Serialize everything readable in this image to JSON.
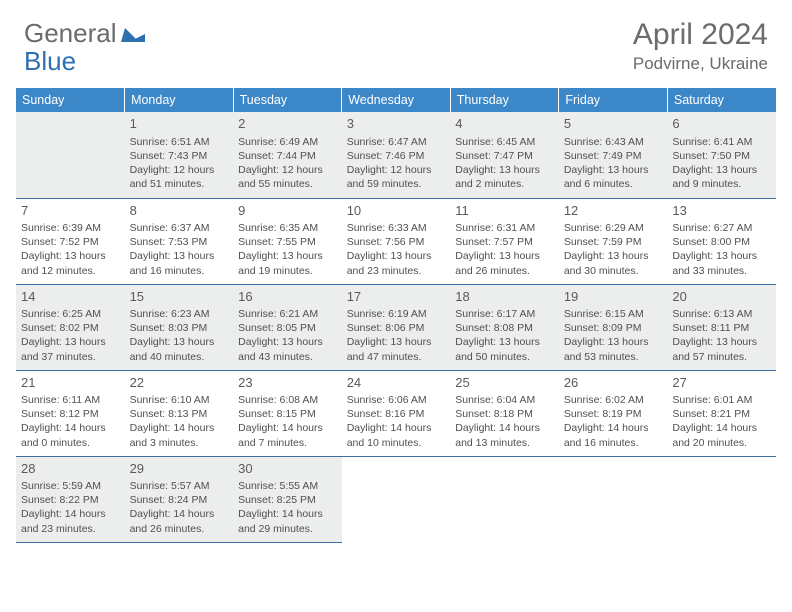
{
  "logo": {
    "text_a": "General",
    "text_b": "Blue"
  },
  "title": "April 2024",
  "location": "Podvirne, Ukraine",
  "colors": {
    "header_bg": "#3b87c8",
    "header_text": "#ffffff",
    "rule": "#3b6f9f",
    "shaded": "#eceded",
    "body_text": "#505050",
    "title_text": "#6b6b6b",
    "logo_blue": "#2f6fb0"
  },
  "day_headers": [
    "Sunday",
    "Monday",
    "Tuesday",
    "Wednesday",
    "Thursday",
    "Friday",
    "Saturday"
  ],
  "weeks": [
    [
      null,
      {
        "n": "1",
        "sr": "6:51 AM",
        "ss": "7:43 PM",
        "dl": "12 hours and 51 minutes."
      },
      {
        "n": "2",
        "sr": "6:49 AM",
        "ss": "7:44 PM",
        "dl": "12 hours and 55 minutes."
      },
      {
        "n": "3",
        "sr": "6:47 AM",
        "ss": "7:46 PM",
        "dl": "12 hours and 59 minutes."
      },
      {
        "n": "4",
        "sr": "6:45 AM",
        "ss": "7:47 PM",
        "dl": "13 hours and 2 minutes."
      },
      {
        "n": "5",
        "sr": "6:43 AM",
        "ss": "7:49 PM",
        "dl": "13 hours and 6 minutes."
      },
      {
        "n": "6",
        "sr": "6:41 AM",
        "ss": "7:50 PM",
        "dl": "13 hours and 9 minutes."
      }
    ],
    [
      {
        "n": "7",
        "sr": "6:39 AM",
        "ss": "7:52 PM",
        "dl": "13 hours and 12 minutes."
      },
      {
        "n": "8",
        "sr": "6:37 AM",
        "ss": "7:53 PM",
        "dl": "13 hours and 16 minutes."
      },
      {
        "n": "9",
        "sr": "6:35 AM",
        "ss": "7:55 PM",
        "dl": "13 hours and 19 minutes."
      },
      {
        "n": "10",
        "sr": "6:33 AM",
        "ss": "7:56 PM",
        "dl": "13 hours and 23 minutes."
      },
      {
        "n": "11",
        "sr": "6:31 AM",
        "ss": "7:57 PM",
        "dl": "13 hours and 26 minutes."
      },
      {
        "n": "12",
        "sr": "6:29 AM",
        "ss": "7:59 PM",
        "dl": "13 hours and 30 minutes."
      },
      {
        "n": "13",
        "sr": "6:27 AM",
        "ss": "8:00 PM",
        "dl": "13 hours and 33 minutes."
      }
    ],
    [
      {
        "n": "14",
        "sr": "6:25 AM",
        "ss": "8:02 PM",
        "dl": "13 hours and 37 minutes."
      },
      {
        "n": "15",
        "sr": "6:23 AM",
        "ss": "8:03 PM",
        "dl": "13 hours and 40 minutes."
      },
      {
        "n": "16",
        "sr": "6:21 AM",
        "ss": "8:05 PM",
        "dl": "13 hours and 43 minutes."
      },
      {
        "n": "17",
        "sr": "6:19 AM",
        "ss": "8:06 PM",
        "dl": "13 hours and 47 minutes."
      },
      {
        "n": "18",
        "sr": "6:17 AM",
        "ss": "8:08 PM",
        "dl": "13 hours and 50 minutes."
      },
      {
        "n": "19",
        "sr": "6:15 AM",
        "ss": "8:09 PM",
        "dl": "13 hours and 53 minutes."
      },
      {
        "n": "20",
        "sr": "6:13 AM",
        "ss": "8:11 PM",
        "dl": "13 hours and 57 minutes."
      }
    ],
    [
      {
        "n": "21",
        "sr": "6:11 AM",
        "ss": "8:12 PM",
        "dl": "14 hours and 0 minutes."
      },
      {
        "n": "22",
        "sr": "6:10 AM",
        "ss": "8:13 PM",
        "dl": "14 hours and 3 minutes."
      },
      {
        "n": "23",
        "sr": "6:08 AM",
        "ss": "8:15 PM",
        "dl": "14 hours and 7 minutes."
      },
      {
        "n": "24",
        "sr": "6:06 AM",
        "ss": "8:16 PM",
        "dl": "14 hours and 10 minutes."
      },
      {
        "n": "25",
        "sr": "6:04 AM",
        "ss": "8:18 PM",
        "dl": "14 hours and 13 minutes."
      },
      {
        "n": "26",
        "sr": "6:02 AM",
        "ss": "8:19 PM",
        "dl": "14 hours and 16 minutes."
      },
      {
        "n": "27",
        "sr": "6:01 AM",
        "ss": "8:21 PM",
        "dl": "14 hours and 20 minutes."
      }
    ],
    [
      {
        "n": "28",
        "sr": "5:59 AM",
        "ss": "8:22 PM",
        "dl": "14 hours and 23 minutes."
      },
      {
        "n": "29",
        "sr": "5:57 AM",
        "ss": "8:24 PM",
        "dl": "14 hours and 26 minutes."
      },
      {
        "n": "30",
        "sr": "5:55 AM",
        "ss": "8:25 PM",
        "dl": "14 hours and 29 minutes."
      },
      null,
      null,
      null,
      null
    ]
  ],
  "labels": {
    "sunrise": "Sunrise: ",
    "sunset": "Sunset: ",
    "daylight": "Daylight: "
  }
}
